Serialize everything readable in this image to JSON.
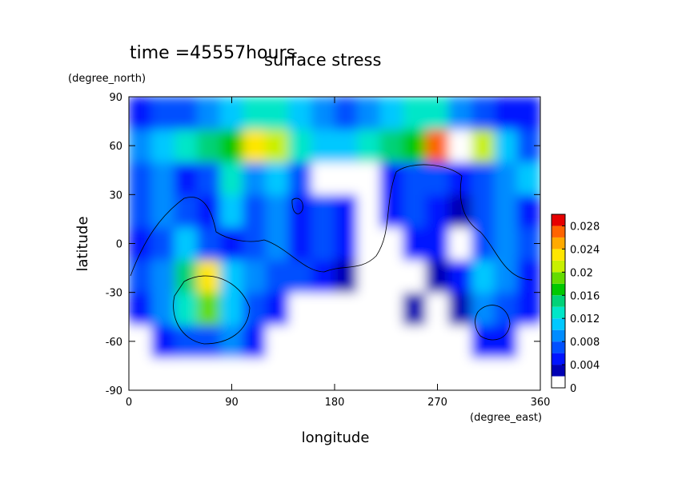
{
  "chart_data": {
    "type": "contour",
    "title": "surface stress",
    "time_label": "time =45557hours",
    "x_label": "longitude",
    "x_units": "(degree_east)",
    "y_label": "latitude",
    "y_units": "(degree_north)",
    "xlim": [
      0,
      360
    ],
    "xticks": [
      0,
      90,
      180,
      270,
      360
    ],
    "ylim": [
      -90,
      90
    ],
    "yticks": [
      -90,
      -60,
      -30,
      0,
      30,
      60,
      90
    ],
    "x": [
      10,
      30,
      50,
      70,
      90,
      110,
      130,
      150,
      170,
      190,
      210,
      230,
      250,
      270,
      290,
      310,
      330,
      350
    ],
    "y": [
      -80,
      -60,
      -40,
      -20,
      0,
      20,
      40,
      60,
      80
    ],
    "z": [
      [
        0,
        0,
        0,
        0,
        0,
        0,
        0,
        0,
        0,
        0,
        0,
        0,
        0,
        0,
        0,
        0,
        0,
        0
      ],
      [
        0,
        0.004,
        0.006,
        0.006,
        0.008,
        0.004,
        0,
        0,
        0,
        0,
        0,
        0,
        0,
        0,
        0,
        0.004,
        0.004,
        0
      ],
      [
        0.004,
        0.008,
        0.012,
        0.018,
        0.01,
        0.006,
        0.004,
        0,
        0,
        0,
        0,
        0,
        0.002,
        0,
        0.002,
        0.008,
        0.006,
        0.004
      ],
      [
        0.006,
        0.008,
        0.014,
        0.022,
        0.01,
        0.008,
        0.006,
        0.006,
        0.004,
        0.002,
        0,
        0,
        0,
        0.002,
        0.004,
        0.01,
        0.008,
        0.004
      ],
      [
        0.004,
        0.006,
        0.01,
        0.006,
        0.004,
        0.006,
        0.008,
        0.004,
        0.006,
        0.004,
        0,
        0,
        0.004,
        0.004,
        0,
        0.006,
        0.008,
        0.006
      ],
      [
        0.006,
        0.008,
        0.006,
        0.004,
        0.01,
        0.006,
        0.008,
        0.004,
        0.006,
        0.004,
        0,
        0.004,
        0.006,
        0.004,
        0.002,
        0.006,
        0.008,
        0.004
      ],
      [
        0.006,
        0.008,
        0.004,
        0.006,
        0.012,
        0.008,
        0.01,
        0.006,
        0,
        0,
        0,
        0.004,
        0.006,
        0.006,
        0.004,
        0.006,
        0.008,
        0.01
      ],
      [
        0.008,
        0.01,
        0.012,
        0.014,
        0.016,
        0.022,
        0.02,
        0.012,
        0.01,
        0.01,
        0.012,
        0.014,
        0.016,
        0.026,
        0.03,
        0.02,
        0.01,
        0.006
      ],
      [
        0.005,
        0.006,
        0.007,
        0.008,
        0.01,
        0.012,
        0.012,
        0.01,
        0.008,
        0.007,
        0.008,
        0.01,
        0.012,
        0.012,
        0.008,
        0.006,
        0.005,
        0.005
      ]
    ],
    "clim": [
      0,
      0.03
    ],
    "cticks": [
      0,
      0.004,
      0.008,
      0.012,
      0.016,
      0.02,
      0.024,
      0.028
    ],
    "colors": [
      "#ffffff",
      "#0000b4",
      "#0014ff",
      "#0050ff",
      "#008cff",
      "#00c8ff",
      "#00e6c8",
      "#00d278",
      "#00c800",
      "#64dc00",
      "#c8f000",
      "#ffe600",
      "#ffaa00",
      "#ff6400",
      "#e60000"
    ],
    "over_color": "#ffffff"
  }
}
